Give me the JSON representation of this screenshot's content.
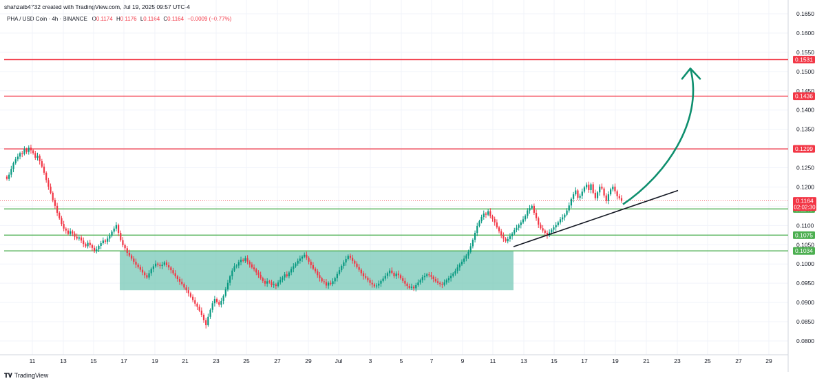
{
  "header": {
    "attribution": "shahzaib4732 created with TradingView.com, Jul 19, 2025 09:57 UTC-4"
  },
  "symbol": {
    "title": "PHA / USD Coin · 4h · BINANCE",
    "o_label": "O",
    "o_value": "0.1174",
    "h_label": "H",
    "h_value": "0.1176",
    "l_label": "L",
    "l_value": "0.1164",
    "c_label": "C",
    "c_value": "0.1164",
    "change": "−0.0009 (−0.77%)"
  },
  "footer": {
    "logo_text": "TradingView"
  },
  "colors": {
    "up": "#089981",
    "down": "#f23645",
    "resistance": "#f23645",
    "support": "#4caf50",
    "zone": "#7fccbc",
    "arrow": "#0e8f6e",
    "trendline": "#131722"
  },
  "chart_data": {
    "type": "candlestick",
    "ylim": [
      0.0775,
      0.168
    ],
    "y_ticks": [
      "0.0800",
      "0.0850",
      "0.0900",
      "0.0950",
      "0.1000",
      "0.1050",
      "0.1100",
      "0.1150",
      "0.1200",
      "0.1250",
      "0.1300",
      "0.1350",
      "0.1400",
      "0.1450",
      "0.1500",
      "0.1550",
      "0.1600",
      "0.1650"
    ],
    "x_ticks": [
      "11",
      "13",
      "15",
      "17",
      "19",
      "21",
      "23",
      "25",
      "27",
      "29",
      "Jul",
      "3",
      "5",
      "7",
      "9",
      "11",
      "13",
      "15",
      "17",
      "19",
      "21",
      "23",
      "25",
      "27",
      "29"
    ],
    "resistance_levels": [
      {
        "price": 0.1531,
        "label": "0.1531"
      },
      {
        "price": 0.1436,
        "label": "0.1436"
      },
      {
        "price": 0.1299,
        "label": "0.1299"
      }
    ],
    "support_levels": [
      {
        "price": 0.1143,
        "label": "0.1143"
      },
      {
        "price": 0.1075,
        "label": "0.1075"
      },
      {
        "price": 0.1034,
        "label": "0.1034"
      }
    ],
    "last_price": {
      "price": 0.1164,
      "label": "0.1164",
      "countdown": "02:02:30"
    },
    "accumulation_zone": {
      "x_start": "Jun 17",
      "x_end": "Jul 12",
      "price_top": 0.1034,
      "price_bottom": 0.0932
    },
    "trendline": {
      "start": {
        "x": "Jul 12",
        "price": 0.1045
      },
      "end": {
        "x": "Jul 21",
        "price": 0.1191
      }
    },
    "projection_arrow": {
      "start": {
        "x": "Jul 19",
        "price": 0.1155
      },
      "end": {
        "x": "Jul 23",
        "price": 0.1508
      }
    },
    "candle_closes": [
      0.1221,
      0.1232,
      0.1247,
      0.1262,
      0.1272,
      0.1279,
      0.1288,
      0.1286,
      0.1298,
      0.1291,
      0.1302,
      0.1295,
      0.1288,
      0.1276,
      0.1281,
      0.1267,
      0.1253,
      0.1237,
      0.1218,
      0.1201,
      0.1185,
      0.1166,
      0.1151,
      0.1133,
      0.1119,
      0.1104,
      0.1092,
      0.1087,
      0.1078,
      0.1085,
      0.1079,
      0.1071,
      0.1066,
      0.1069,
      0.1061,
      0.1052,
      0.1046,
      0.1055,
      0.1049,
      0.1042,
      0.1033,
      0.1038,
      0.1047,
      0.1054,
      0.1061,
      0.1058,
      0.1066,
      0.1073,
      0.1084,
      0.1092,
      0.1101,
      0.1081,
      0.1062,
      0.1049,
      0.1041,
      0.1029,
      0.1022,
      0.1014,
      0.1006,
      0.0998,
      0.0992,
      0.0985,
      0.0978,
      0.0971,
      0.0965,
      0.0976,
      0.0987,
      0.0994,
      0.1001,
      0.0998,
      0.0995,
      0.0998,
      0.1004,
      0.0997,
      0.0991,
      0.0984,
      0.0976,
      0.0968,
      0.0961,
      0.0954,
      0.0948,
      0.0939,
      0.0932,
      0.0924,
      0.0915,
      0.0906,
      0.0897,
      0.0889,
      0.0879,
      0.0868,
      0.0854,
      0.0841,
      0.0863,
      0.0881,
      0.0898,
      0.0909,
      0.0901,
      0.0894,
      0.0904,
      0.0917,
      0.0934,
      0.0951,
      0.0968,
      0.0983,
      0.0994,
      0.0996,
      0.1005,
      0.1011,
      0.1008,
      0.1015,
      0.1006,
      0.0999,
      0.0991,
      0.0986,
      0.0978,
      0.0972,
      0.0963,
      0.0956,
      0.0949,
      0.0955,
      0.0953,
      0.0945,
      0.0947,
      0.0943,
      0.0952,
      0.0959,
      0.0965,
      0.0973,
      0.0968,
      0.0978,
      0.0987,
      0.0994,
      0.1001,
      0.1008,
      0.1014,
      0.1019,
      0.1024,
      0.1016,
      0.1006,
      0.0997,
      0.0988,
      0.0981,
      0.0971,
      0.0963,
      0.0955,
      0.0953,
      0.0944,
      0.0951,
      0.0948,
      0.0955,
      0.0963,
      0.0974,
      0.0984,
      0.0995,
      0.1004,
      0.1013,
      0.1021,
      0.1016,
      0.1008,
      0.1001,
      0.0992,
      0.0985,
      0.0976,
      0.0968,
      0.0964,
      0.0958,
      0.0951,
      0.0947,
      0.0942,
      0.0944,
      0.0949,
      0.0956,
      0.0962,
      0.0969,
      0.0976,
      0.0983,
      0.0977,
      0.0968,
      0.0975,
      0.0971,
      0.0963,
      0.0956,
      0.0949,
      0.0943,
      0.0938,
      0.0941,
      0.0937,
      0.0945,
      0.0952,
      0.0958,
      0.0966,
      0.0969,
      0.0973,
      0.0971,
      0.0967,
      0.0961,
      0.0955,
      0.0951,
      0.0948,
      0.0946,
      0.0952,
      0.0958,
      0.0963,
      0.0969,
      0.0975,
      0.0982,
      0.0991,
      0.0999,
      0.1006,
      0.1014,
      0.1022,
      0.1031,
      0.1046,
      0.1063,
      0.1081,
      0.1099,
      0.1111,
      0.1122,
      0.1131,
      0.1128,
      0.1137,
      0.1124,
      0.1117,
      0.1108,
      0.1095,
      0.1085,
      0.1074,
      0.1066,
      0.1059,
      0.1065,
      0.1072,
      0.1079,
      0.1088,
      0.1094,
      0.1101,
      0.1108,
      0.1116,
      0.1125,
      0.1139,
      0.1145,
      0.1151,
      0.1133,
      0.1119,
      0.1102,
      0.1093,
      0.1087,
      0.1081,
      0.1074,
      0.1082,
      0.1089,
      0.1095,
      0.1101,
      0.1108,
      0.1116,
      0.1121,
      0.1128,
      0.1139,
      0.1152,
      0.1169,
      0.1181,
      0.1191,
      0.1172,
      0.1177,
      0.1188,
      0.1199,
      0.1206,
      0.1192,
      0.1207,
      0.1185,
      0.1171,
      0.1186,
      0.1201,
      0.1196,
      0.1178,
      0.1164,
      0.1181,
      0.1194,
      0.1201,
      0.1189,
      0.1176,
      0.1171,
      0.1164
    ]
  }
}
